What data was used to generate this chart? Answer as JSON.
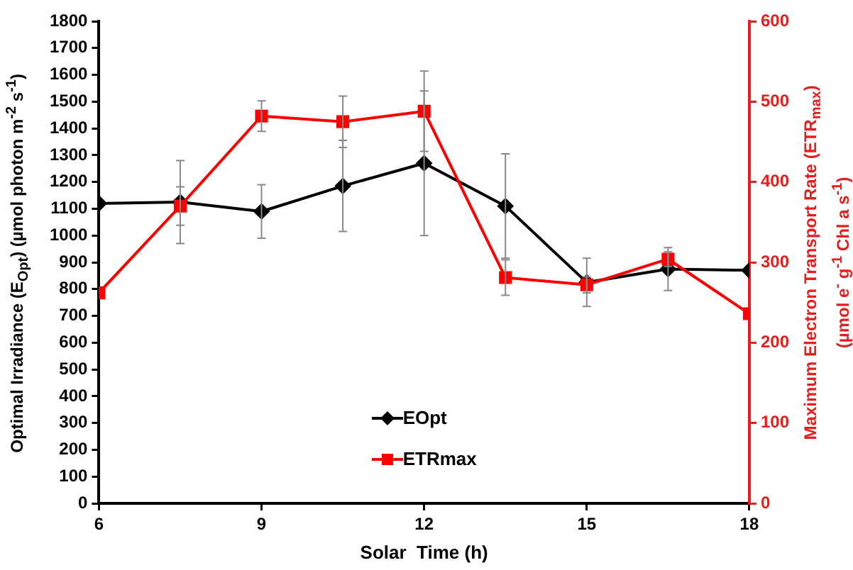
{
  "chart_data": {
    "type": "line",
    "xlabel": "Solar  Time (h)",
    "ylabel": "Optimal Irradiance  (E$_{Opt}$)  (µmol photon m$^{-2}$ s$^{-1}$)",
    "y2label": "Maximum Electron Transport Rate (ETR$_{max}$)\n(µmol e$^{-}$ g$^{-1}$ Chl a s$^{-1}$)",
    "x": [
      6,
      7.5,
      9,
      10.5,
      12,
      13.5,
      15,
      16.5,
      18
    ],
    "series": [
      {
        "name": "EOpt",
        "color": "#000000",
        "marker": "diamond",
        "values": [
          1120,
          1125,
          1090,
          1185,
          1270,
          1110,
          825,
          875,
          870
        ],
        "errors": [
          null,
          155,
          100,
          170,
          270,
          195,
          90,
          80,
          null
        ]
      },
      {
        "name": "ETRmax",
        "color": "#ff0000",
        "marker": "square",
        "axis": "y2",
        "values": [
          262,
          370,
          482,
          475,
          488,
          281,
          272,
          304,
          236
        ],
        "errors": [
          null,
          24,
          19,
          32,
          50,
          22,
          10,
          9,
          null
        ]
      }
    ],
    "xlim": [
      6,
      18
    ],
    "xticks": [
      6,
      9,
      12,
      15,
      18
    ],
    "ylim": [
      0,
      1800
    ],
    "yticks": [
      0,
      100,
      200,
      300,
      400,
      500,
      600,
      700,
      800,
      900,
      1000,
      1100,
      1200,
      1300,
      1400,
      1500,
      1600,
      1700,
      1800
    ],
    "y2lim": [
      0,
      600
    ],
    "y2ticks": [
      0,
      100,
      200,
      300,
      400,
      500,
      600
    ],
    "grid": false,
    "legend": "bottom",
    "line_style": "solid"
  }
}
